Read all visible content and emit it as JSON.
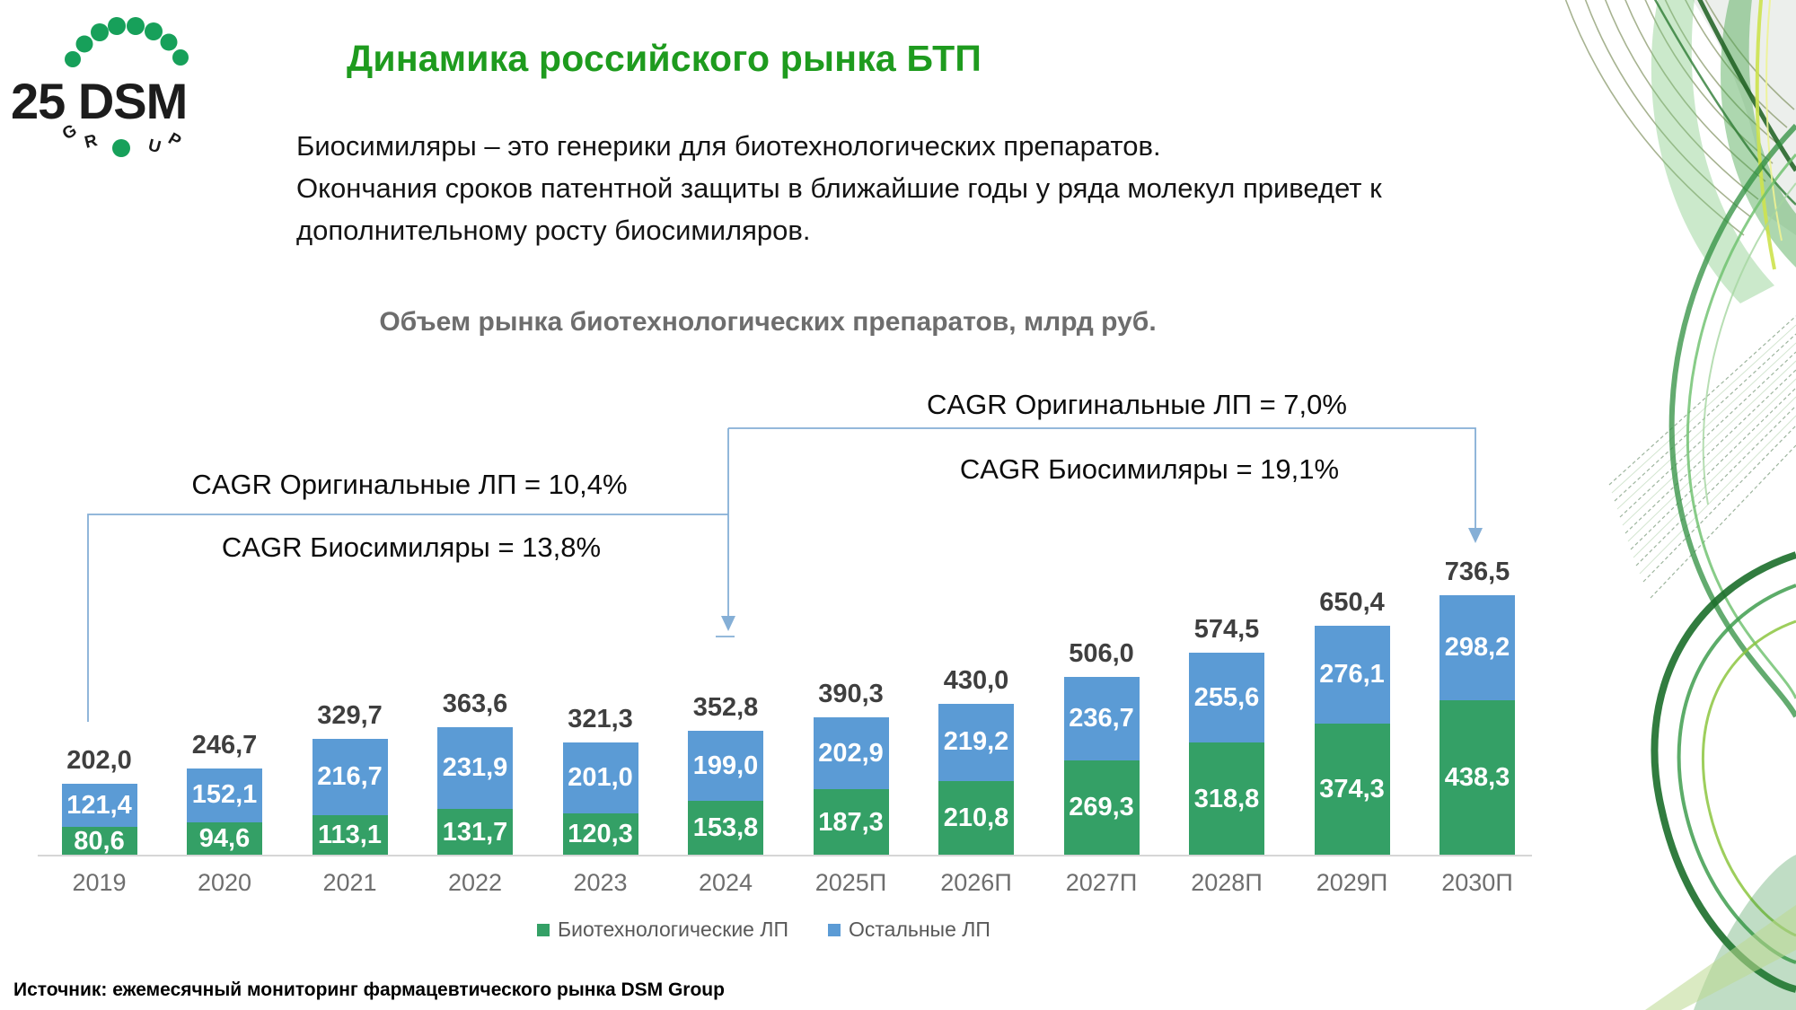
{
  "logo": {
    "title": "25 DSM",
    "sub_letters": [
      "G",
      "R",
      "U",
      "P"
    ],
    "dot_color": "#17a05a"
  },
  "header": {
    "title": "Динамика российского рынка БТП"
  },
  "intro": {
    "lines": [
      "Биосимиляры – это генерики для биотехнологических препаратов.",
      "Окончания сроков патентной защиты в ближайшие годы у ряда молекул приведет к",
      "дополнительному росту биосимиляров."
    ]
  },
  "annotations": {
    "left_top": "CAGR Оригинальные ЛП = 10,4%",
    "left_bottom": "CAGR Биосимиляры = 13,8%",
    "right_top": "CAGR Оригинальные ЛП = 7,0%",
    "right_bottom": "CAGR Биосимиляры = 19,1%"
  },
  "chart_data": {
    "type": "bar",
    "stacked": true,
    "title": "Объем рынка биотехнологических препаратов, млрд руб.",
    "categories": [
      "2019",
      "2020",
      "2021",
      "2022",
      "2023",
      "2024",
      "2025П",
      "2026П",
      "2027П",
      "2028П",
      "2029П",
      "2030П"
    ],
    "series": [
      {
        "name": "Биотехнологические ЛП",
        "color": "#34A066",
        "values": [
          80.6,
          94.6,
          113.1,
          131.7,
          120.3,
          153.8,
          187.3,
          210.8,
          269.3,
          318.8,
          374.3,
          438.3
        ]
      },
      {
        "name": "Остальные ЛП",
        "color": "#5B9BD5",
        "values": [
          121.4,
          152.1,
          216.7,
          231.9,
          201.0,
          199.0,
          202.9,
          219.2,
          236.7,
          255.6,
          276.1,
          298.2
        ]
      }
    ],
    "totals": [
      202.0,
      246.7,
      329.7,
      363.6,
      321.3,
      352.8,
      390.3,
      430.0,
      506.0,
      574.5,
      650.4,
      736.5
    ],
    "ylim": [
      0,
      780
    ],
    "gridlines": false,
    "legend_position": "bottom",
    "value_decimal_separator": ","
  },
  "footer": {
    "source": "Источник: ежемесячный мониторинг фармацевтического рынка DSM Group"
  },
  "colors": {
    "title_green": "#1E9B1E",
    "bar_green": "#34A066",
    "bar_blue": "#5B9BD5",
    "bracket_blue": "#85AFD6",
    "axis_gray": "#D6D6D6",
    "total_label_gray": "#3F3F3F",
    "chart_title_gray": "#6D6D6D",
    "legend_text_gray": "#595959"
  }
}
